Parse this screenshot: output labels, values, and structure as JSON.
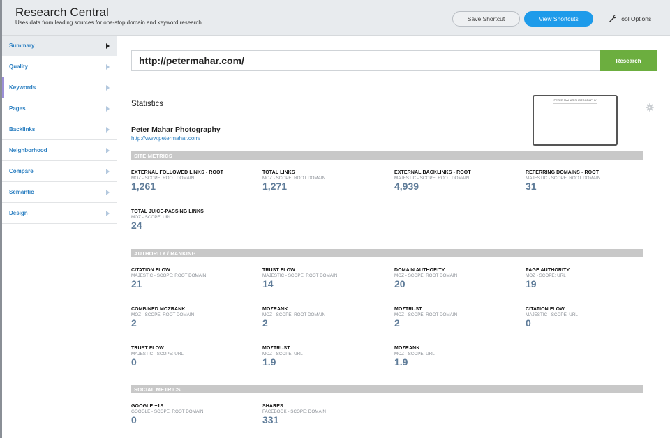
{
  "header": {
    "title": "Research Central",
    "subtitle": "Uses data from leading sources for one-stop domain and keyword research.",
    "save_shortcut": "Save Shortcut",
    "view_shortcuts": "View Shortcuts",
    "tool_options": "Tool Options"
  },
  "sidebar": {
    "items": [
      {
        "label": "Summary"
      },
      {
        "label": "Quality"
      },
      {
        "label": "Keywords"
      },
      {
        "label": "Pages"
      },
      {
        "label": "Backlinks"
      },
      {
        "label": "Neighborhood"
      },
      {
        "label": "Compare"
      },
      {
        "label": "Semantic"
      },
      {
        "label": "Design"
      }
    ]
  },
  "search": {
    "value": "http://petermahar.com/",
    "button": "Research"
  },
  "statistics": {
    "heading": "Statistics",
    "site_name": "Peter Mahar Photography",
    "site_url": "http://www.petermahar.com/",
    "thumbnail_title": "PETER MAHAR PHOTOGRAPHY"
  },
  "sections": {
    "site_metrics": {
      "title": "SITE METRICS",
      "metrics": [
        {
          "title": "EXTERNAL FOLLOWED LINKS - ROOT",
          "source": "MOZ - SCOPE: ROOT DOMAIN",
          "value": "1,261"
        },
        {
          "title": "TOTAL LINKS",
          "source": "MOZ - SCOPE: ROOT DOMAIN",
          "value": "1,271"
        },
        {
          "title": "EXTERNAL BACKLINKS - ROOT",
          "source": "MAJESTIC - SCOPE: ROOT DOMAIN",
          "value": "4,939"
        },
        {
          "title": "REFERRING DOMAINS - ROOT",
          "source": "MAJESTIC - SCOPE: ROOT DOMAIN",
          "value": "31"
        },
        {
          "title": "TOTAL JUICE-PASSING LINKS",
          "source": "MOZ - SCOPE: URL",
          "value": "24"
        }
      ]
    },
    "authority": {
      "title": "AUTHORITY / RANKING",
      "metrics": [
        {
          "title": "CITATION FLOW",
          "source": "MAJESTIC - SCOPE: ROOT DOMAIN",
          "value": "21"
        },
        {
          "title": "TRUST FLOW",
          "source": "MAJESTIC - SCOPE: ROOT DOMAIN",
          "value": "14"
        },
        {
          "title": "DOMAIN AUTHORITY",
          "source": "MOZ - SCOPE: ROOT DOMAIN",
          "value": "20"
        },
        {
          "title": "PAGE AUTHORITY",
          "source": "MOZ - SCOPE: URL",
          "value": "19"
        },
        {
          "title": "COMBINED MOZRANK",
          "source": "MOZ - SCOPE: ROOT DOMAIN",
          "value": "2"
        },
        {
          "title": "MOZRANK",
          "source": "MOZ - SCOPE: ROOT DOMAIN",
          "value": "2"
        },
        {
          "title": "MOZTRUST",
          "source": "MOZ - SCOPE: ROOT DOMAIN",
          "value": "2"
        },
        {
          "title": "CITATION FLOW",
          "source": "MAJESTIC - SCOPE: URL",
          "value": "0"
        },
        {
          "title": "TRUST FLOW",
          "source": "MAJESTIC - SCOPE: URL",
          "value": "0"
        },
        {
          "title": "MOZTRUST",
          "source": "MOZ - SCOPE: URL",
          "value": "1.9"
        },
        {
          "title": "MOZRANK",
          "source": "MOZ - SCOPE: URL",
          "value": "1.9"
        }
      ]
    },
    "social": {
      "title": "SOCIAL METRICS",
      "metrics": [
        {
          "title": "GOOGLE +1S",
          "source": "GOOGLE - SCOPE: ROOT DOMAIN",
          "value": "0"
        },
        {
          "title": "SHARES",
          "source": "FACEBOOK - SCOPE: DOMAIN",
          "value": "331"
        }
      ]
    }
  },
  "colors": {
    "accent_blue": "#1e9bea",
    "research_green": "#6cae3f",
    "value_color": "#5f7c99",
    "link_blue": "#2b7fc1"
  }
}
